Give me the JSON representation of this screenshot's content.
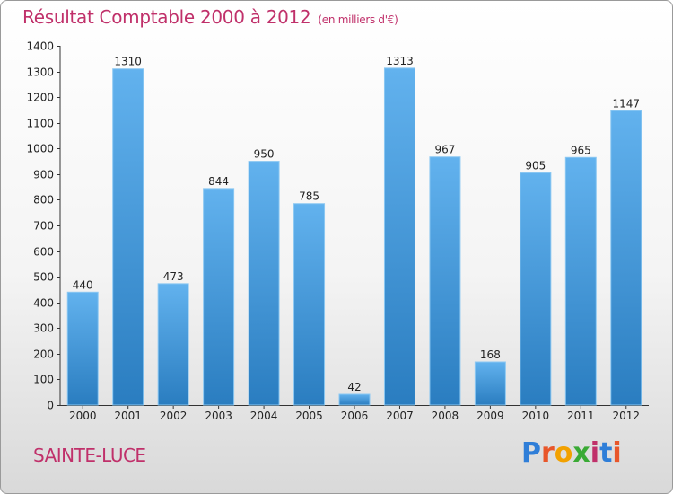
{
  "title": "Résultat Comptable 2000 à 2012",
  "subtitle": "(en milliers d'€)",
  "city": "SAINTE-LUCE",
  "logo": {
    "letters": [
      "P",
      "r",
      "o",
      "x",
      "i",
      "t",
      "i"
    ],
    "colors": [
      "#2f7ed8",
      "#e8562a",
      "#f2a100",
      "#3aaa35",
      "#c0306a",
      "#2f7ed8",
      "#e8562a"
    ]
  },
  "colors": {
    "bar_top": "#62b2ee",
    "bar_bottom": "#2a7dc0",
    "title": "#c0306a"
  },
  "chart_data": {
    "type": "bar",
    "categories": [
      "2000",
      "2001",
      "2002",
      "2003",
      "2004",
      "2005",
      "2006",
      "2007",
      "2008",
      "2009",
      "2010",
      "2011",
      "2012"
    ],
    "values": [
      440,
      1310,
      473,
      844,
      950,
      785,
      42,
      1313,
      967,
      168,
      905,
      965,
      1147
    ],
    "data_labels": [
      "440",
      "1310",
      "473",
      "844",
      "950",
      "785",
      "42",
      "1313",
      "967",
      "168",
      "905",
      "965",
      "1147"
    ],
    "ylim": [
      0,
      1400
    ],
    "yticks": [
      0,
      100,
      200,
      300,
      400,
      500,
      600,
      700,
      800,
      900,
      1000,
      1100,
      1200,
      1300,
      1400
    ],
    "grid": false,
    "legend": "none"
  }
}
